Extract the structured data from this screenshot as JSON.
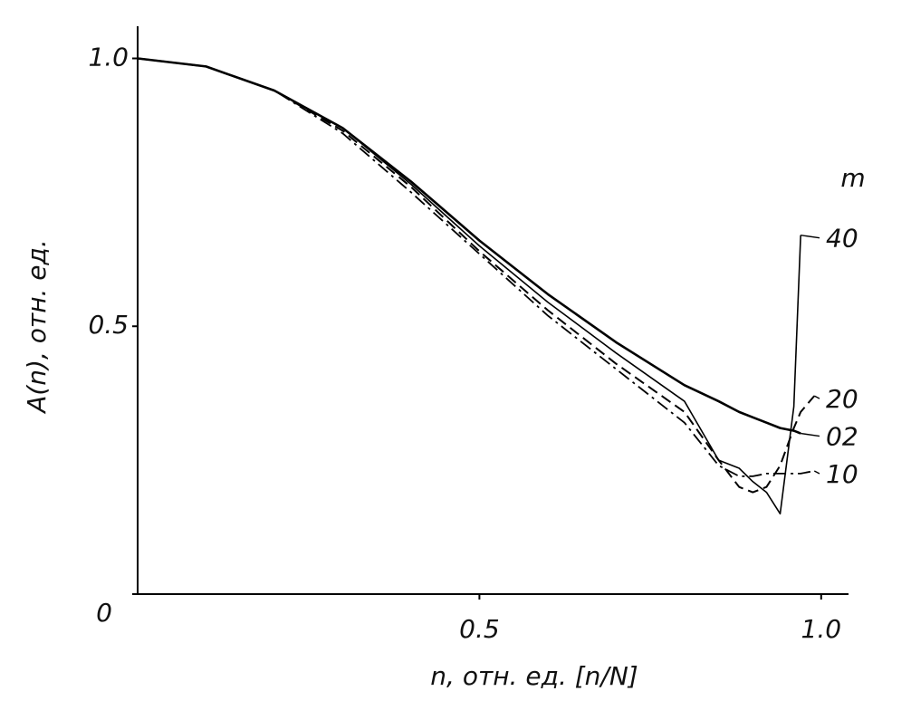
{
  "chart_data": {
    "type": "line",
    "xlabel": "n, отн. ед. [n/N]",
    "ylabel": "A(n), отн. ед.",
    "legend_title": "m",
    "x": [
      0,
      0.1,
      0.2,
      0.3,
      0.4,
      0.5,
      0.6,
      0.7,
      0.8,
      0.85,
      0.88,
      0.9,
      0.92,
      0.94,
      0.96,
      0.97,
      0.99
    ],
    "series": [
      {
        "name": "02",
        "color": "#000000",
        "style": "solid",
        "width": 2.6,
        "values": [
          1.0,
          0.985,
          0.94,
          0.87,
          0.77,
          0.66,
          0.56,
          0.47,
          0.39,
          0.36,
          0.34,
          0.33,
          0.32,
          0.31,
          0.305,
          0.3,
          null
        ]
      },
      {
        "name": "10",
        "color": "#000000",
        "style": "dashdot",
        "width": 1.8,
        "values": [
          1.0,
          0.985,
          0.94,
          0.86,
          0.75,
          0.635,
          0.52,
          0.42,
          0.32,
          0.24,
          0.22,
          0.22,
          0.225,
          0.225,
          0.225,
          0.225,
          0.23
        ]
      },
      {
        "name": "20",
        "color": "#000000",
        "style": "dashed",
        "width": 2,
        "values": [
          1.0,
          0.985,
          0.94,
          0.865,
          0.76,
          0.64,
          0.53,
          0.43,
          0.34,
          0.25,
          0.2,
          0.19,
          0.2,
          0.24,
          0.31,
          0.34,
          0.37
        ]
      },
      {
        "name": "40",
        "color": "#000000",
        "style": "solid",
        "width": 1.6,
        "values": [
          1.0,
          0.985,
          0.94,
          0.87,
          0.765,
          0.65,
          0.545,
          0.45,
          0.36,
          0.25,
          0.235,
          0.21,
          0.19,
          0.15,
          0.35,
          0.67,
          null
        ]
      }
    ],
    "xlim": [
      0,
      1.04
    ],
    "ylim": [
      0,
      1.06
    ],
    "xticks": [
      0.5,
      {
        "value": 1,
        "label": "1.0"
      }
    ],
    "yticks": [
      0,
      0.5,
      {
        "value": 1,
        "label": "1.0"
      }
    ],
    "grid": false
  }
}
